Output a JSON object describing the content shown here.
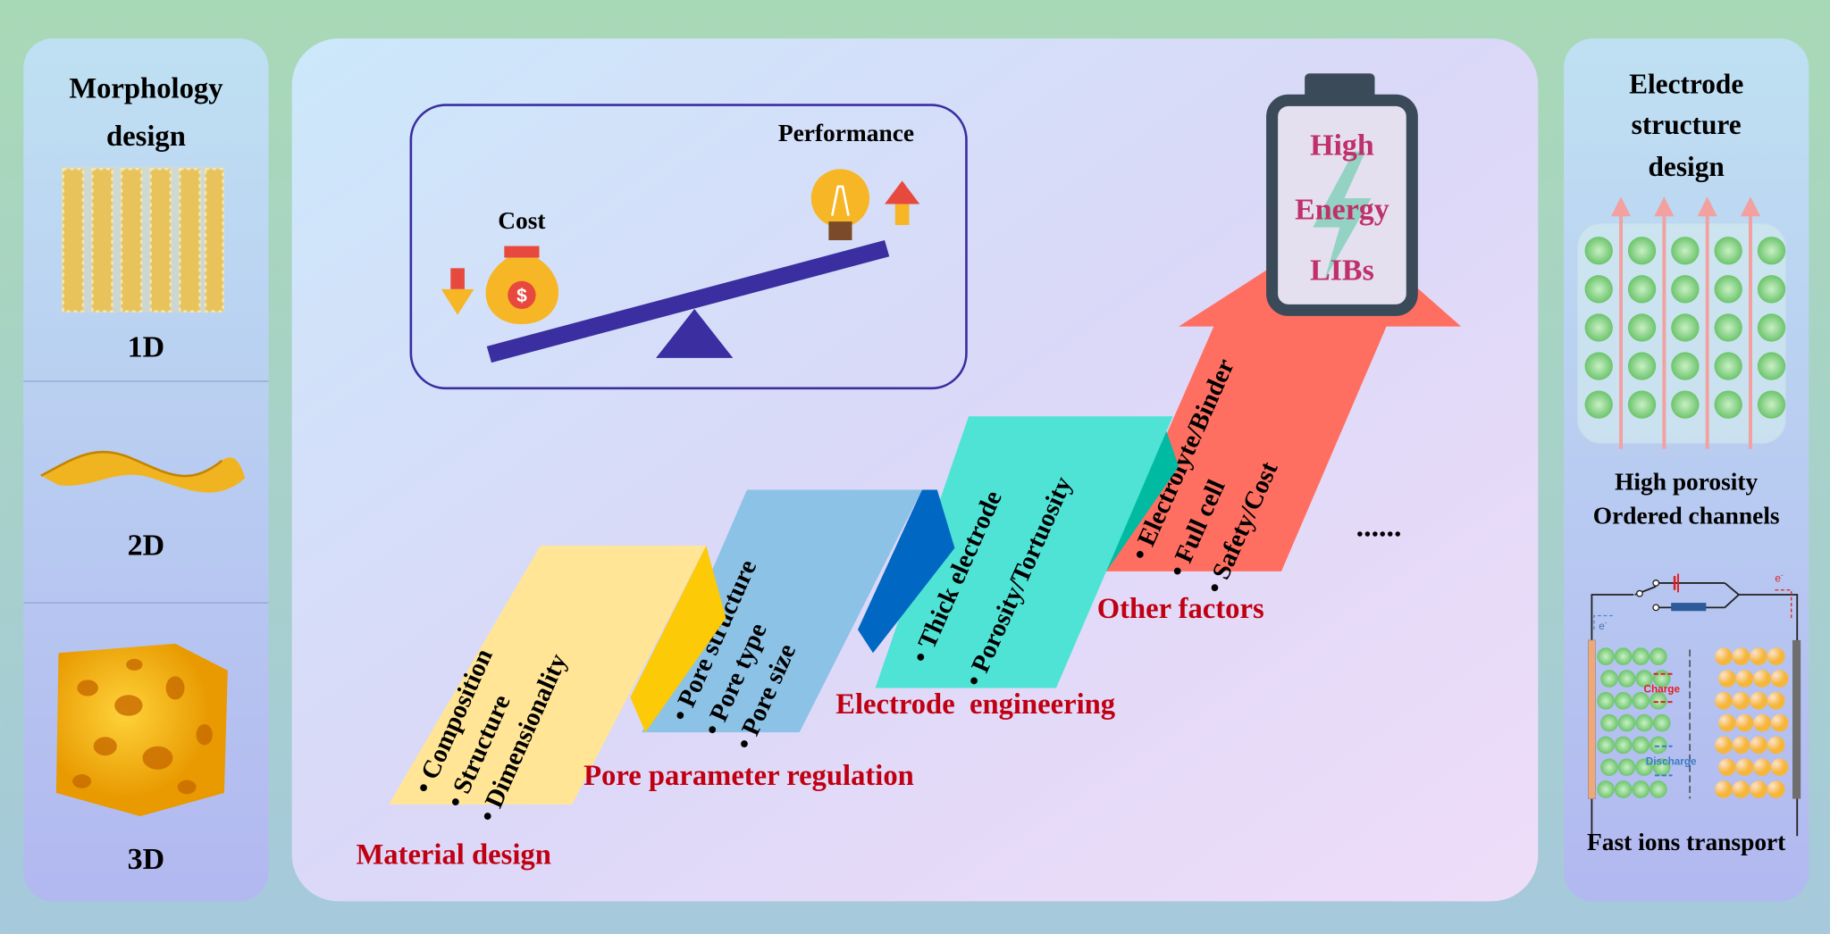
{
  "left_panel": {
    "title_line1": "Morphology",
    "title_line2": "design",
    "items": [
      {
        "label": "1D"
      },
      {
        "label": "2D"
      },
      {
        "label": "3D"
      }
    ]
  },
  "center_panel": {
    "balance": {
      "cost_label": "Cost",
      "performance_label": "Performance",
      "cost_symbol": "$"
    },
    "battery": {
      "line1": "High",
      "line2": "Energy",
      "line3": "LIBs"
    },
    "steps": [
      {
        "title": "Material design",
        "bullets": [
          "Composition",
          "Structure",
          "Dimensionality"
        ],
        "color": "#ffe595"
      },
      {
        "title": "Pore parameter regulation",
        "bullets": [
          "Pore structure",
          "Pore type",
          "Pore size"
        ],
        "color": "#8cc2e6"
      },
      {
        "title": "Electrode  engineering",
        "bullets": [
          "Thick electrode",
          "Porosity/Tortuosity"
        ],
        "color": "#4fe3d6"
      },
      {
        "title": "Other factors",
        "bullets": [
          "Electrolyte/Binder",
          "Full cell",
          "Safety/Cost"
        ],
        "color": "#ff6f61"
      }
    ],
    "ellipsis": "......"
  },
  "right_panel": {
    "title_line1": "Electrode",
    "title_line2": "structure",
    "title_line3": "design",
    "feature1": "High porosity",
    "feature2": "Ordered channels",
    "circuit": {
      "electron_label": "e",
      "electron_sup": "-",
      "charge_label": "Charge",
      "discharge_label": "Discharge"
    },
    "caption": "Fast ions transport"
  },
  "colors": {
    "label_red": "#c00012",
    "beam": "#3a2ea0",
    "battery_text": "#c0306a"
  }
}
